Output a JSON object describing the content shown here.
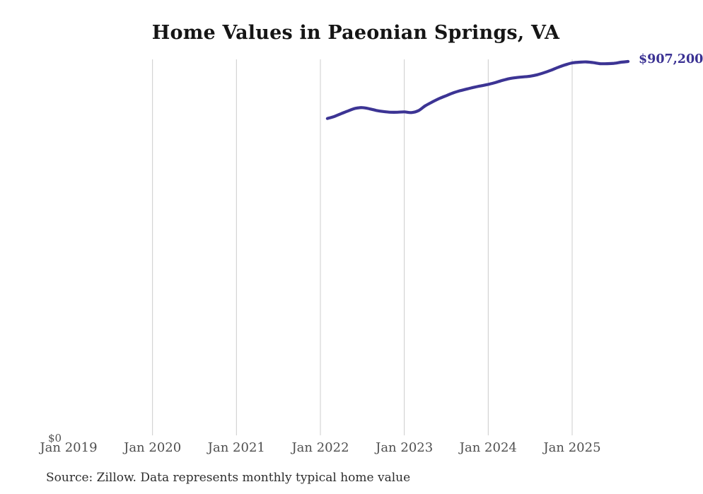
{
  "page": {
    "title": "Home Values in Paeonian Springs, VA",
    "source_note": "Source: Zillow. Data represents monthly typical home value"
  },
  "chart": {
    "end_label": "$907,200",
    "y_zero_label": "$0",
    "line_color": "#3c3494",
    "grid_color": "#cccccc",
    "x_ticks": [
      {
        "label": "Jan 2019",
        "year": 2019,
        "gridline": false
      },
      {
        "label": "Jan 2020",
        "year": 2020,
        "gridline": true
      },
      {
        "label": "Jan 2021",
        "year": 2021,
        "gridline": true
      },
      {
        "label": "Jan 2022",
        "year": 2022,
        "gridline": true
      },
      {
        "label": "Jan 2023",
        "year": 2023,
        "gridline": true
      },
      {
        "label": "Jan 2024",
        "year": 2024,
        "gridline": true
      },
      {
        "label": "Jan 2025",
        "year": 2025,
        "gridline": true
      }
    ]
  },
  "chart_data": {
    "type": "line",
    "title": "Home Values in Paeonian Springs, VA",
    "series_name": "Monthly typical home value",
    "xlabel": "",
    "ylabel": "",
    "ylim": [
      0,
      912000
    ],
    "x_axis_range": [
      "2019-01",
      "2026-01"
    ],
    "grid": "vertical-only",
    "legend": "none",
    "end_annotation": "$907,200",
    "x": [
      "2022-02",
      "2022-03",
      "2022-04",
      "2022-05",
      "2022-06",
      "2022-07",
      "2022-08",
      "2022-09",
      "2022-10",
      "2022-11",
      "2022-12",
      "2023-01",
      "2023-02",
      "2023-03",
      "2023-04",
      "2023-05",
      "2023-06",
      "2023-07",
      "2023-08",
      "2023-09",
      "2023-10",
      "2023-11",
      "2023-12",
      "2024-01",
      "2024-02",
      "2024-03",
      "2024-04",
      "2024-05",
      "2024-06",
      "2024-07",
      "2024-08",
      "2024-09",
      "2024-10",
      "2024-11",
      "2024-12",
      "2025-01",
      "2025-02",
      "2025-03",
      "2025-04",
      "2025-05",
      "2025-06",
      "2025-07",
      "2025-08",
      "2025-09"
    ],
    "values": [
      768000,
      773000,
      780100,
      786900,
      792900,
      794600,
      791900,
      787700,
      785100,
      783400,
      783400,
      784200,
      782500,
      787000,
      799000,
      808300,
      816900,
      823800,
      830700,
      835900,
      840200,
      844500,
      847900,
      851400,
      855700,
      861000,
      865300,
      867900,
      869600,
      871300,
      874800,
      880000,
      886000,
      892900,
      898900,
      903700,
      905400,
      906200,
      904500,
      901900,
      901900,
      902800,
      905400,
      907200
    ]
  }
}
